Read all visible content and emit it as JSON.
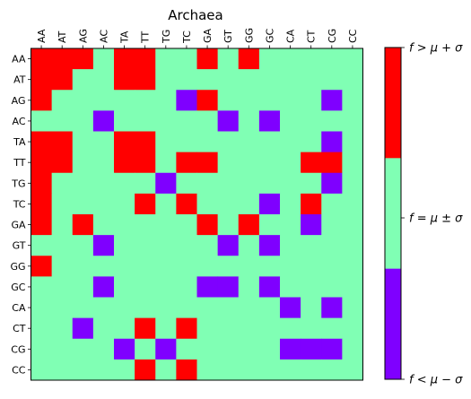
{
  "chart_data": {
    "type": "heatmap",
    "title": "Archaea",
    "x_labels": [
      "AA",
      "AT",
      "AG",
      "AC",
      "TA",
      "TT",
      "TG",
      "TC",
      "GA",
      "GT",
      "GG",
      "GC",
      "CA",
      "CT",
      "CG",
      "CC"
    ],
    "y_labels": [
      "AA",
      "AT",
      "AG",
      "AC",
      "TA",
      "TT",
      "TG",
      "TC",
      "GA",
      "GT",
      "GG",
      "GC",
      "CA",
      "CT",
      "CG",
      "CC"
    ],
    "levels": [
      -1,
      0,
      1
    ],
    "matrix": [
      [
        1,
        1,
        1,
        0,
        1,
        1,
        0,
        0,
        1,
        0,
        1,
        0,
        0,
        0,
        0,
        0
      ],
      [
        1,
        1,
        0,
        0,
        1,
        1,
        0,
        0,
        0,
        0,
        0,
        0,
        0,
        0,
        0,
        0
      ],
      [
        1,
        0,
        0,
        0,
        0,
        0,
        0,
        -1,
        1,
        0,
        0,
        0,
        0,
        0,
        -1,
        0
      ],
      [
        0,
        0,
        0,
        -1,
        0,
        0,
        0,
        0,
        0,
        -1,
        0,
        -1,
        0,
        0,
        0,
        0
      ],
      [
        1,
        1,
        0,
        0,
        1,
        1,
        0,
        0,
        0,
        0,
        0,
        0,
        0,
        0,
        -1,
        0
      ],
      [
        1,
        1,
        0,
        0,
        1,
        1,
        0,
        1,
        1,
        0,
        0,
        0,
        0,
        1,
        1,
        0
      ],
      [
        1,
        0,
        0,
        0,
        0,
        0,
        -1,
        0,
        0,
        0,
        0,
        0,
        0,
        0,
        -1,
        0
      ],
      [
        1,
        0,
        0,
        0,
        0,
        1,
        0,
        1,
        0,
        0,
        0,
        -1,
        0,
        1,
        0,
        0
      ],
      [
        1,
        0,
        1,
        0,
        0,
        0,
        0,
        0,
        1,
        0,
        1,
        0,
        0,
        -1,
        0,
        0
      ],
      [
        0,
        0,
        0,
        -1,
        0,
        0,
        0,
        0,
        0,
        -1,
        0,
        -1,
        0,
        0,
        0,
        0
      ],
      [
        1,
        0,
        0,
        0,
        0,
        0,
        0,
        0,
        0,
        0,
        0,
        0,
        0,
        0,
        0,
        0
      ],
      [
        0,
        0,
        0,
        -1,
        0,
        0,
        0,
        0,
        -1,
        -1,
        0,
        -1,
        0,
        0,
        0,
        0
      ],
      [
        0,
        0,
        0,
        0,
        0,
        0,
        0,
        0,
        0,
        0,
        0,
        0,
        -1,
        0,
        -1,
        0
      ],
      [
        0,
        0,
        -1,
        0,
        0,
        1,
        0,
        1,
        0,
        0,
        0,
        0,
        0,
        0,
        0,
        0
      ],
      [
        0,
        0,
        0,
        0,
        -1,
        0,
        -1,
        0,
        0,
        0,
        0,
        0,
        -1,
        -1,
        -1,
        0
      ],
      [
        0,
        0,
        0,
        0,
        0,
        1,
        0,
        1,
        0,
        0,
        0,
        0,
        0,
        0,
        0,
        0
      ]
    ],
    "colorbar": {
      "labels": [
        "f < μ − σ",
        "f = μ ± σ",
        "f > μ + σ"
      ],
      "colors": {
        "-1": "#7f00ff",
        "0": "#80ffb4",
        "1": "#ff0000"
      }
    },
    "grid": false
  }
}
